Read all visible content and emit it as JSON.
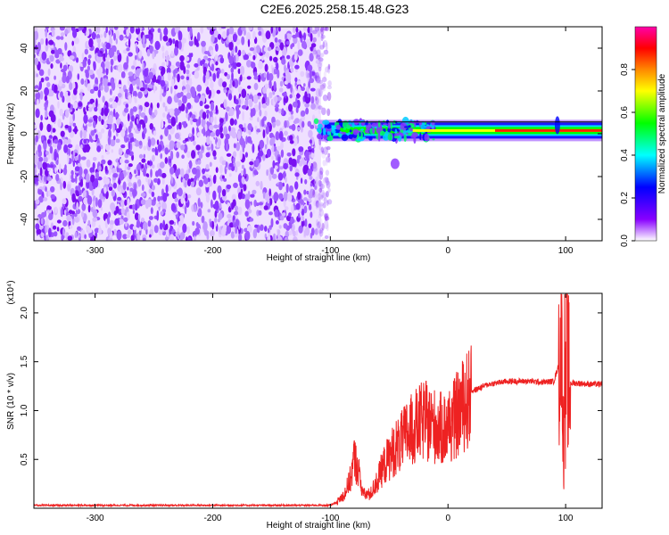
{
  "title": "C2E6.2025.258.15.48.G23",
  "chart_data": [
    {
      "type": "heatmap",
      "name": "spectrogram",
      "xlabel": "Height of straight line (km)",
      "ylabel": "Frequency (Hz)",
      "xlim": [
        -352,
        131
      ],
      "ylim": [
        -50,
        50
      ],
      "xticks": [
        -300,
        -200,
        -100,
        0,
        100
      ],
      "yticks": [
        -40,
        -20,
        0,
        20,
        40
      ],
      "noise_region_x": [
        -352,
        -108
      ],
      "signal_band_center_hz": 1.5,
      "colorbar": {
        "label": "Normalized spectral amplitude",
        "range": [
          0,
          1
        ],
        "ticks": [
          0.0,
          0.2,
          0.4,
          0.6,
          0.8
        ],
        "colormap": [
          "#ffffff",
          "#8800ff",
          "#0000ff",
          "#00ffff",
          "#00ff00",
          "#ffff00",
          "#ff8800",
          "#ff0000",
          "#ff00aa"
        ]
      }
    },
    {
      "type": "line",
      "name": "snr",
      "xlabel": "Height of straight line (km)",
      "ylabel": "SNR (10 * v/v)",
      "yscale_label": "(x10⁴)",
      "xlim": [
        -352,
        131
      ],
      "ylim": [
        0,
        2.2
      ],
      "xticks": [
        -300,
        -200,
        -100,
        0,
        100
      ],
      "yticks": [
        0.5,
        1.0,
        1.5,
        2.0
      ],
      "ytick_labels": [
        "0.5",
        "1.0",
        "1.5",
        "2.0"
      ],
      "color": "#ee2222",
      "series": [
        {
          "name": "SNR",
          "x": [
            -352,
            -100,
            -95,
            -88,
            -82,
            -80,
            -76,
            -72,
            -66,
            -60,
            -55,
            -50,
            -45,
            -40,
            -35,
            -30,
            -25,
            -20,
            -15,
            -10,
            -5,
            0,
            5,
            10,
            15,
            20,
            25,
            30,
            35,
            40,
            50,
            60,
            70,
            80,
            90,
            95,
            97,
            98,
            99,
            100,
            101,
            102,
            104,
            110,
            120,
            131
          ],
          "values": [
            0.03,
            0.03,
            0.06,
            0.15,
            0.35,
            0.55,
            0.4,
            0.15,
            0.15,
            0.3,
            0.45,
            0.55,
            0.65,
            0.7,
            0.8,
            0.85,
            0.9,
            0.95,
            0.9,
            0.88,
            0.85,
            0.88,
            0.95,
            1.05,
            1.15,
            1.2,
            1.22,
            1.25,
            1.27,
            1.28,
            1.3,
            1.3,
            1.3,
            1.29,
            1.3,
            1.5,
            2.0,
            0.2,
            1.9,
            0.8,
            2.1,
            1.3,
            1.28,
            1.28,
            1.27,
            1.27
          ]
        }
      ]
    }
  ]
}
